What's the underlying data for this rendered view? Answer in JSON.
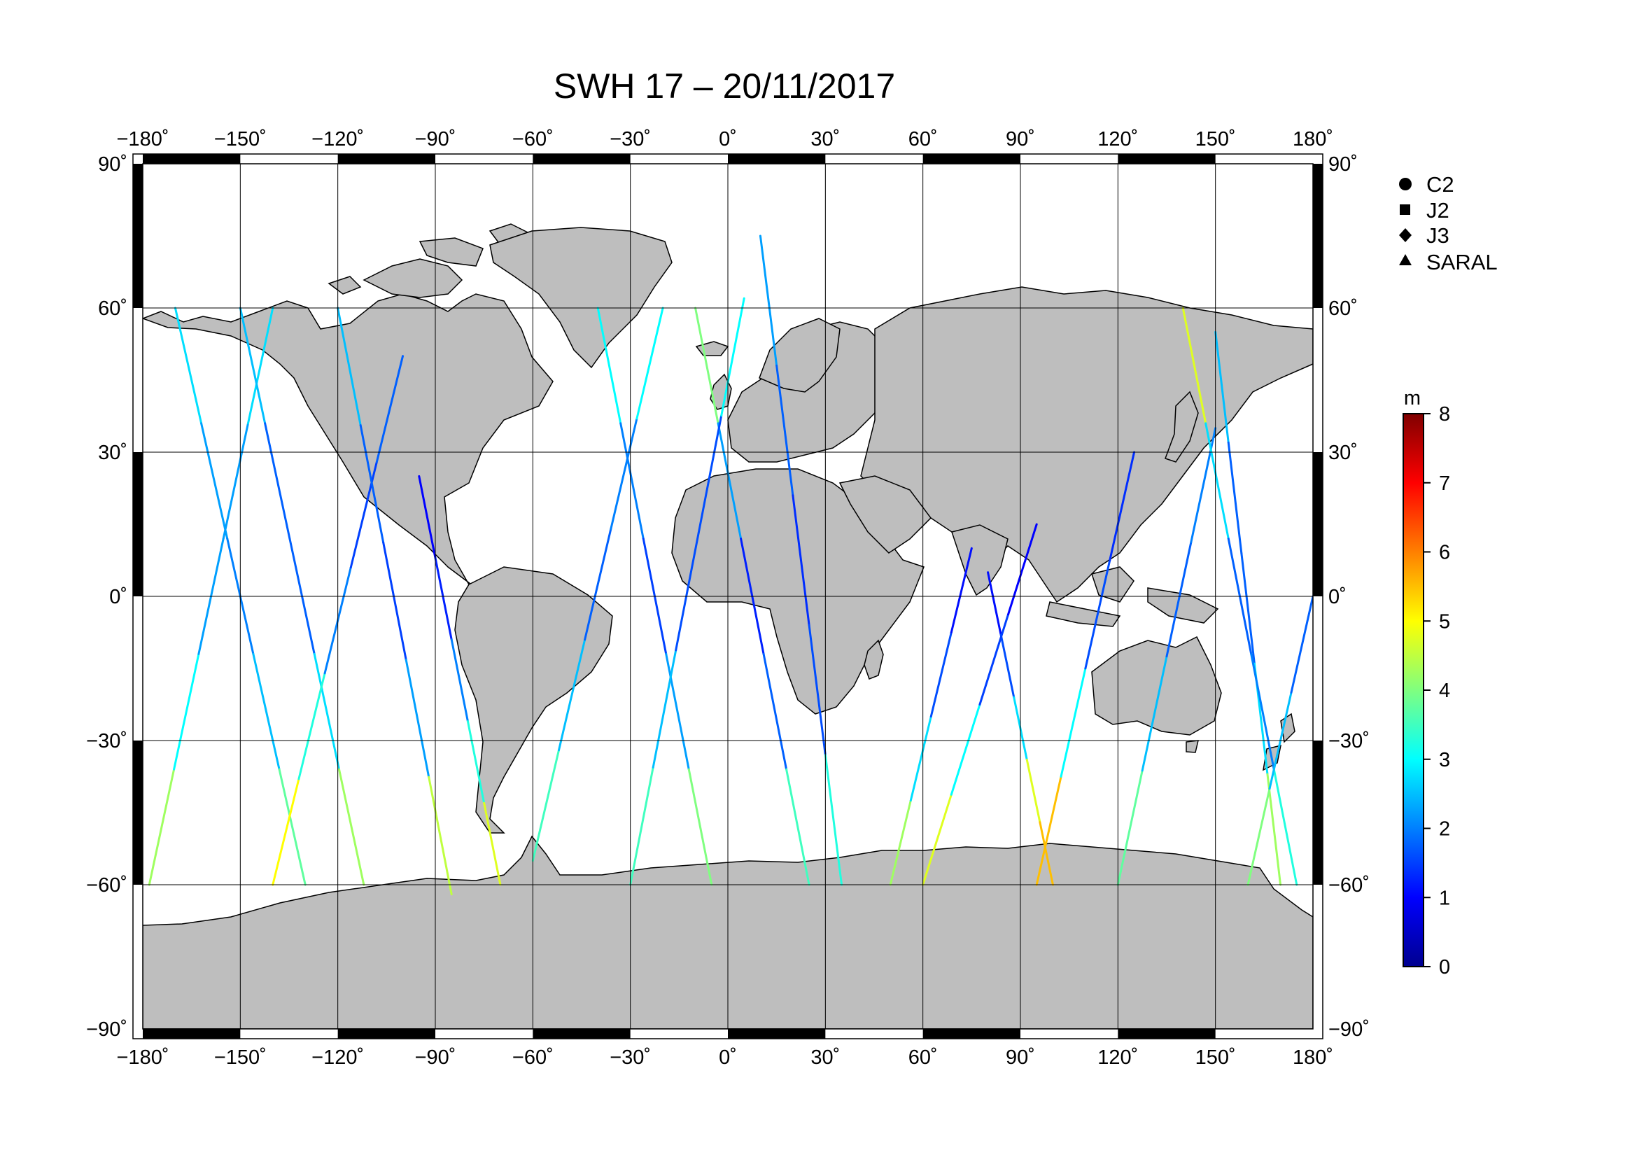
{
  "title": "SWH 17 – 20/11/2017",
  "map": {
    "lon_ticks": [
      "−180˚",
      "−150˚",
      "−120˚",
      "−90˚",
      "−60˚",
      "−30˚",
      "0˚",
      "30˚",
      "60˚",
      "90˚",
      "120˚",
      "150˚",
      "180˚"
    ],
    "lat_ticks": [
      "90˚",
      "60˚",
      "30˚",
      "0˚",
      "−30˚",
      "−60˚",
      "−90˚"
    ],
    "lon_range": [
      -180,
      180
    ],
    "lat_range": [
      -90,
      90
    ],
    "land_color": "#bebebe",
    "ocean_color": "#ffffff",
    "grid": true,
    "land_icon": "continents-shape"
  },
  "legend": {
    "placement": "top-right",
    "items": [
      {
        "label": "C2",
        "marker": "circle-icon"
      },
      {
        "label": "J2",
        "marker": "square-icon"
      },
      {
        "label": "J3",
        "marker": "diamond-icon"
      },
      {
        "label": "SARAL",
        "marker": "triangle-icon"
      }
    ]
  },
  "colorbar": {
    "unit": "m",
    "min": 0,
    "max": 8,
    "ticks": [
      "0",
      "1",
      "2",
      "3",
      "4",
      "5",
      "6",
      "7",
      "8"
    ],
    "colormap": "jet"
  },
  "chart_data": {
    "type": "scatter",
    "title": "SWH 17 – 20/11/2017",
    "xlabel": "",
    "ylabel": "",
    "xlim": [
      -180,
      180
    ],
    "ylim": [
      -90,
      90
    ],
    "color_variable_unit": "m",
    "color_range": [
      0,
      8
    ],
    "series": [
      {
        "name": "C2",
        "tracks": [
          {
            "lon0": -178,
            "lat0": -60,
            "lon1": -140,
            "lat1": 60,
            "swh": [
              5,
              3.5,
              2.5,
              2,
              2.5,
              3
            ]
          },
          {
            "lon0": -150,
            "lat0": 60,
            "lon1": -112,
            "lat1": -60,
            "swh": [
              3,
              2,
              1.5,
              2,
              3.5,
              5
            ]
          },
          {
            "lon0": -95,
            "lat0": 25,
            "lon1": -70,
            "lat1": -60,
            "swh": [
              1,
              1,
              1.5,
              2.5,
              4,
              5.5
            ]
          },
          {
            "lon0": 10,
            "lat0": 75,
            "lon1": 35,
            "lat1": -60,
            "swh": [
              2.5,
              2,
              1.5,
              1.2,
              2,
              4.5
            ]
          },
          {
            "lon0": 80,
            "lat0": 5,
            "lon1": 100,
            "lat1": -60,
            "swh": [
              1,
              1.2,
              2,
              3.5,
              6,
              5
            ]
          },
          {
            "lon0": 150,
            "lat0": 55,
            "lon1": 170,
            "lat1": -60,
            "swh": [
              3,
              2,
              1.5,
              2,
              3.5,
              5
            ]
          }
        ]
      },
      {
        "name": "J2",
        "tracks": [
          {
            "lon0": -170,
            "lat0": 60,
            "lon1": -130,
            "lat1": -60,
            "swh": [
              3,
              2.5,
              2,
              2,
              3,
              4.5
            ]
          },
          {
            "lon0": -60,
            "lat0": -55,
            "lon1": -20,
            "lat1": 60,
            "swh": [
              4,
              3,
              2,
              1.5,
              2.5,
              3.5
            ]
          },
          {
            "lon0": -40,
            "lat0": 60,
            "lon1": -5,
            "lat1": -60,
            "swh": [
              3.5,
              2.5,
              1.5,
              1.5,
              3,
              5
            ]
          },
          {
            "lon0": 50,
            "lat0": -60,
            "lon1": 75,
            "lat1": 10,
            "swh": [
              5,
              3.5,
              2,
              1.2,
              1
            ]
          },
          {
            "lon0": 120,
            "lat0": -60,
            "lon1": 150,
            "lat1": 35,
            "swh": [
              4.5,
              3,
              2,
              1.5,
              2.5
            ]
          }
        ]
      },
      {
        "name": "J3",
        "tracks": [
          {
            "lon0": -140,
            "lat0": -60,
            "lon1": -100,
            "lat1": 50,
            "swh": [
              6,
              4,
              2.5,
              1.5,
              1.5,
              2
            ]
          },
          {
            "lon0": -10,
            "lat0": 60,
            "lon1": 25,
            "lat1": -60,
            "swh": [
              5,
              3,
              1.5,
              1,
              2.5,
              4.5
            ]
          },
          {
            "lon0": 60,
            "lat0": -60,
            "lon1": 95,
            "lat1": 15,
            "swh": [
              5.5,
              4,
              2,
              1,
              1
            ]
          },
          {
            "lon0": 140,
            "lat0": 60,
            "lon1": 175,
            "lat1": -60,
            "swh": [
              6,
              3.5,
              2,
              1.5,
              2.5,
              4
            ]
          }
        ]
      },
      {
        "name": "SARAL",
        "tracks": [
          {
            "lon0": -120,
            "lat0": 60,
            "lon1": -85,
            "lat1": -62,
            "swh": [
              3,
              2,
              1.5,
              1.5,
              3,
              6
            ]
          },
          {
            "lon0": -30,
            "lat0": -60,
            "lon1": 5,
            "lat1": 62,
            "swh": [
              4,
              3,
              2,
              1.2,
              2,
              4
            ]
          },
          {
            "lon0": 95,
            "lat0": -60,
            "lon1": 125,
            "lat1": 30,
            "swh": [
              7,
              4,
              2,
              1.2,
              1.5
            ]
          },
          {
            "lon0": 160,
            "lat0": -60,
            "lon1": 180,
            "lat1": 0,
            "swh": [
              5,
              3,
              2,
              1.5
            ]
          }
        ]
      }
    ]
  }
}
